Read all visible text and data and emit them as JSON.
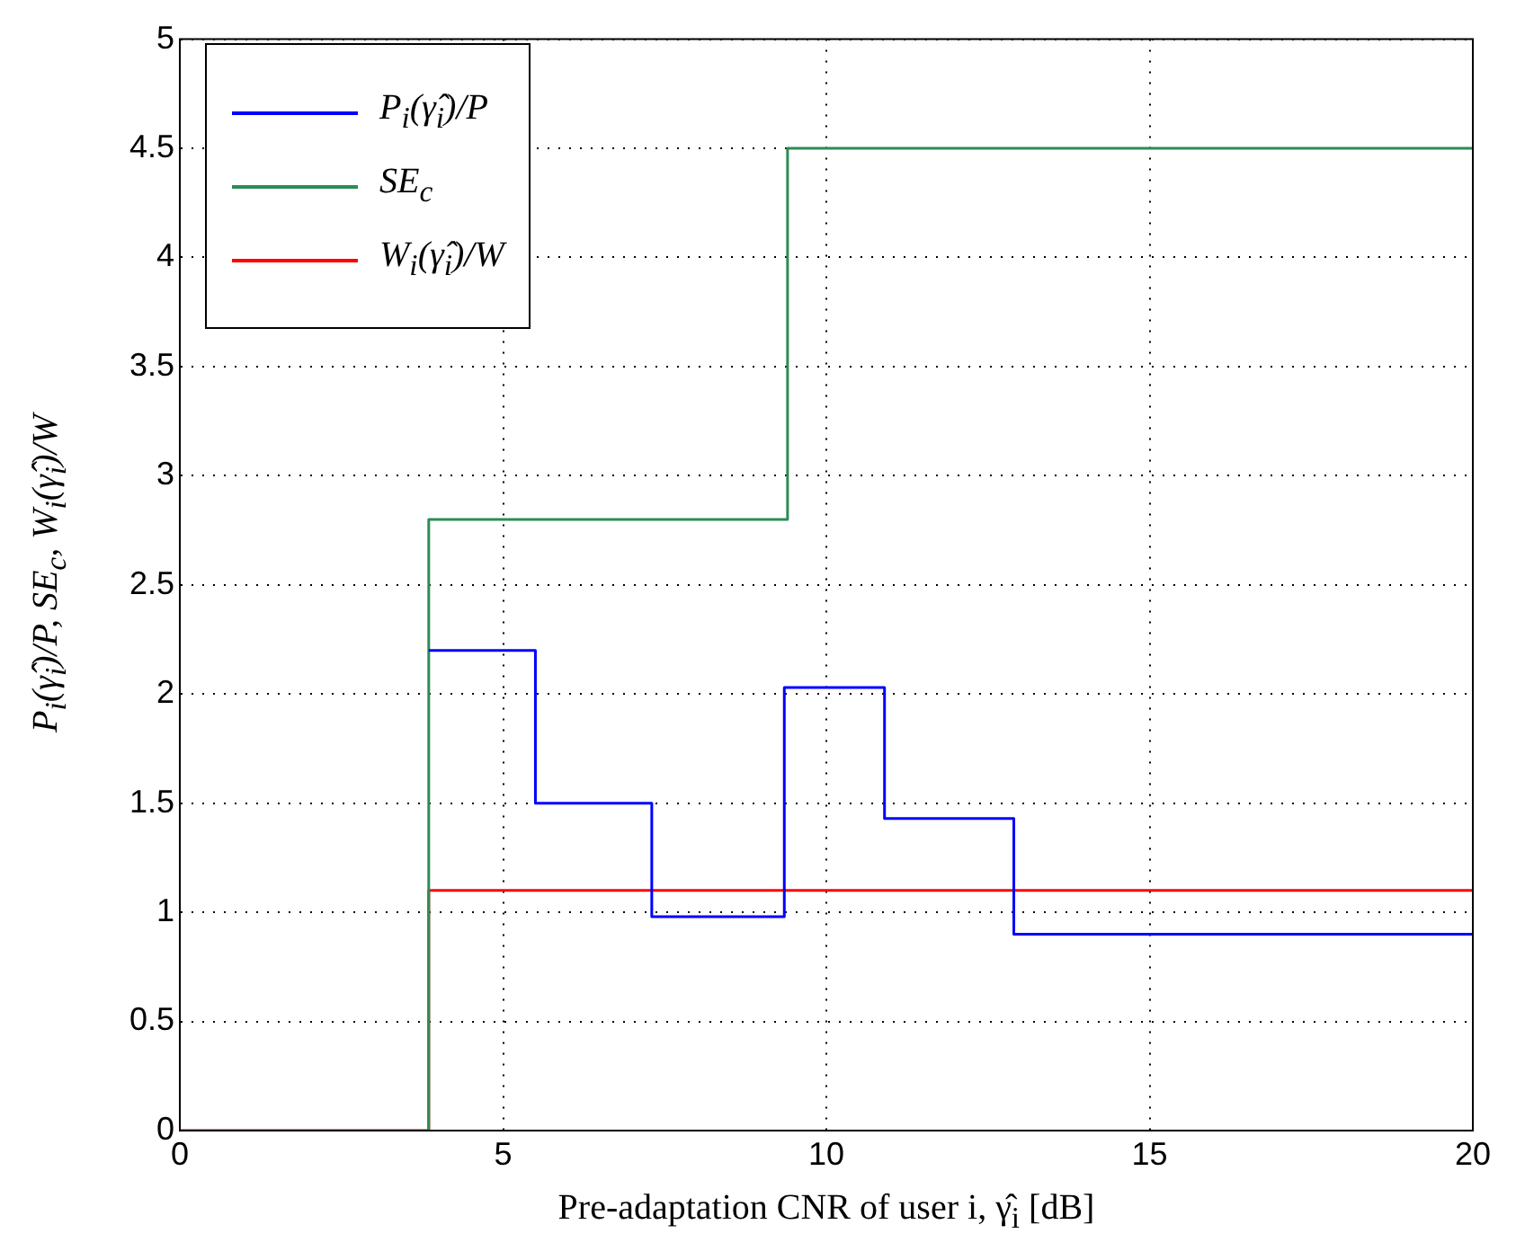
{
  "chart_data": {
    "type": "step",
    "xlabel": "Pre-adaptation CNR of user i, γ̂$_{i}$ [dB]",
    "ylabel": "P$_{i}$(γ̂$_{i}$)/P, SE$_{c}$, W$_{i}$(γ̂$_{i}$)/W",
    "xlim": [
      0,
      20
    ],
    "xticks": [
      0,
      5,
      10,
      15,
      20
    ],
    "ylim": [
      0,
      5
    ],
    "yticks": [
      0,
      0.5,
      1,
      1.5,
      2,
      2.5,
      3,
      3.5,
      4,
      4.5,
      5
    ],
    "grid": true,
    "legend": "top left",
    "series": [
      {
        "name": "P$_{i}$(γ̂$_{i}$)/P",
        "color": "#0000ff",
        "x": [
          3.85,
          5.5,
          7.3,
          9.35,
          10.9,
          12.9,
          20
        ],
        "values": [
          2.2,
          1.5,
          0.98,
          2.03,
          1.43,
          0.9,
          0.9
        ]
      },
      {
        "name": "SE$_{c}$",
        "color": "#2e8b57",
        "x": [
          3.85,
          3.85,
          9.4,
          20
        ],
        "values": [
          0,
          2.8,
          4.5,
          4.5
        ]
      },
      {
        "name": "W$_{i}$(γ̂$_{i}$)/W",
        "color": "#ff0000",
        "x": [
          0,
          3.85,
          20
        ],
        "values": [
          0,
          1.1,
          1.1
        ]
      }
    ]
  }
}
